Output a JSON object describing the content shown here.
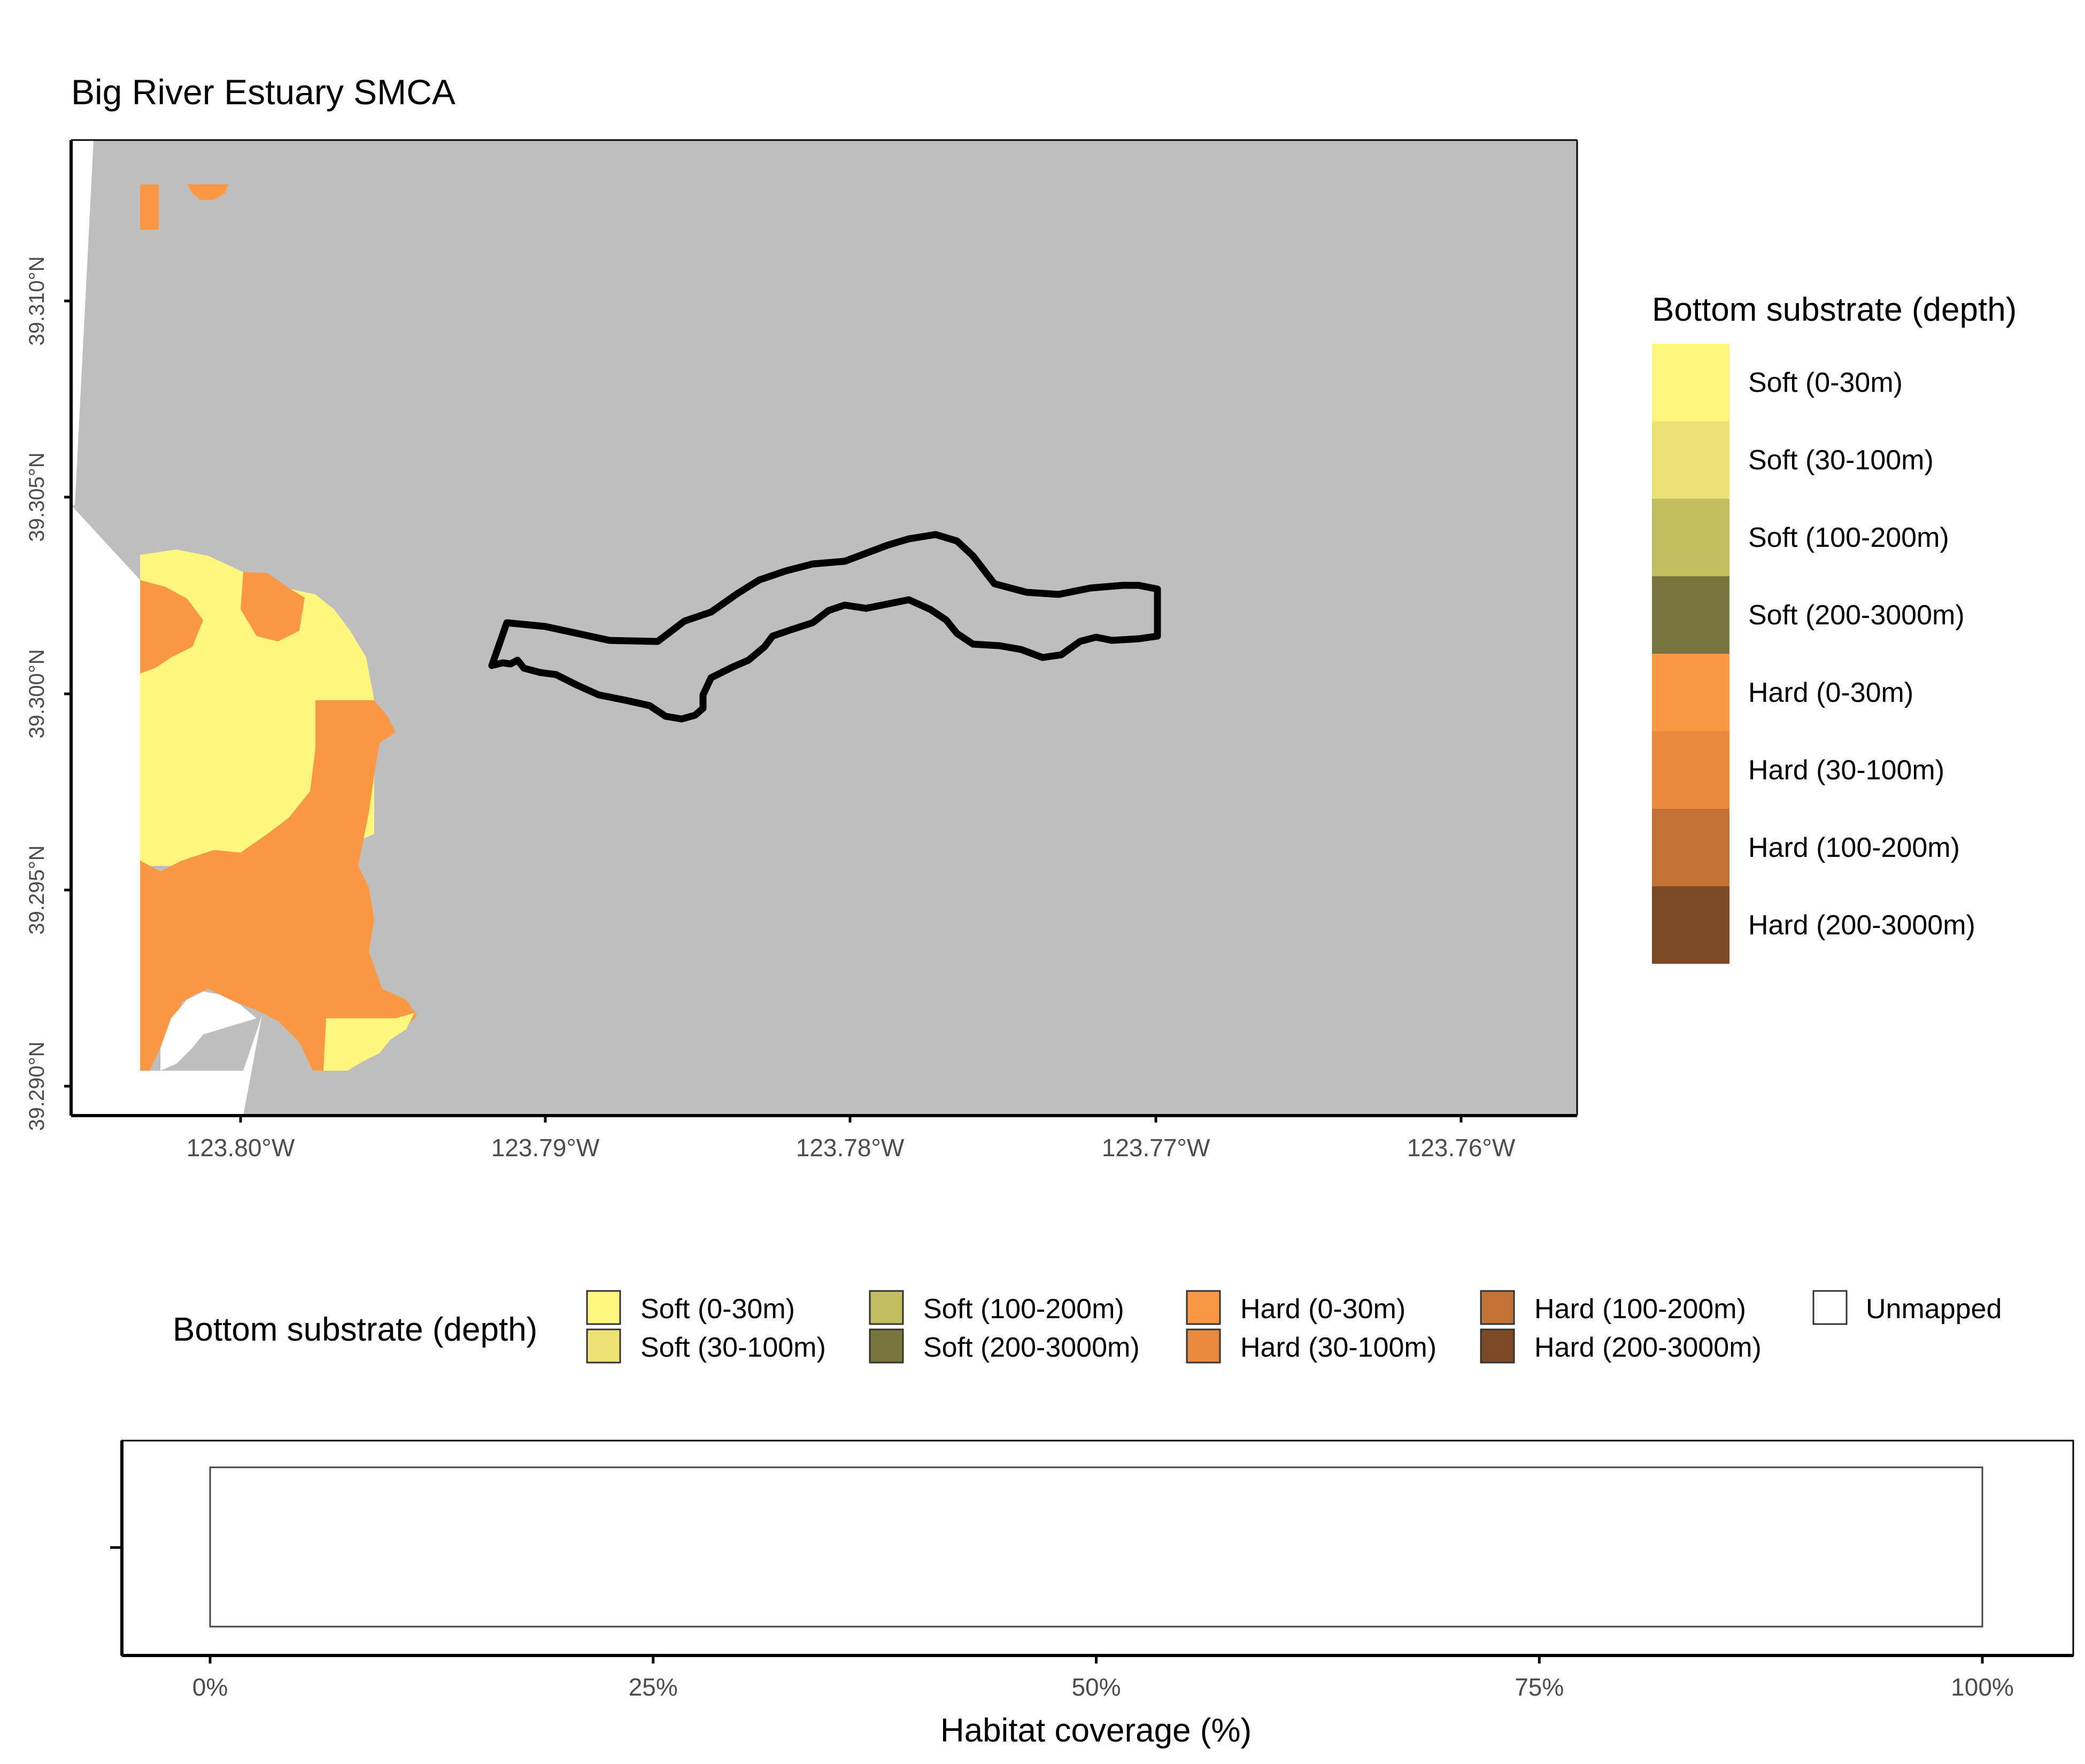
{
  "title": "Big River Estuary SMCA",
  "map": {
    "lat_ticks": [
      "39.290°N",
      "39.295°N",
      "39.300°N",
      "39.305°N",
      "39.310°N"
    ],
    "lon_ticks": [
      "123.80°W",
      "123.79°W",
      "123.78°W",
      "123.77°W",
      "123.76°W"
    ],
    "background_color": "#bebebe"
  },
  "legend_right": {
    "title": "Bottom substrate (depth)",
    "items": [
      {
        "label": "Soft (0-30m)",
        "color": "#fff67f"
      },
      {
        "label": "Soft (30-100m)",
        "color": "#ebe373"
      },
      {
        "label": "Soft (100-200m)",
        "color": "#c3bd62"
      },
      {
        "label": "Soft (200-3000m)",
        "color": "#78763e"
      },
      {
        "label": "Hard (0-30m)",
        "color": "#fc9844"
      },
      {
        "label": "Hard (30-100m)",
        "color": "#e8893c"
      },
      {
        "label": "Hard (100-200m)",
        "color": "#c27234"
      },
      {
        "label": "Hard (200-3000m)",
        "color": "#7b4924"
      }
    ]
  },
  "legend_bottom": {
    "title": "Bottom substrate (depth)",
    "items": [
      {
        "label": "Soft (0-30m)",
        "color": "#fff67f"
      },
      {
        "label": "Soft (30-100m)",
        "color": "#ebe373"
      },
      {
        "label": "Soft (100-200m)",
        "color": "#c3bd62"
      },
      {
        "label": "Soft (200-3000m)",
        "color": "#78763e"
      },
      {
        "label": "Hard (0-30m)",
        "color": "#fc9844"
      },
      {
        "label": "Hard (30-100m)",
        "color": "#e8893c"
      },
      {
        "label": "Hard (100-200m)",
        "color": "#c27234"
      },
      {
        "label": "Hard (200-3000m)",
        "color": "#7b4924"
      },
      {
        "label": "Unmapped",
        "color": "#ffffff"
      }
    ]
  },
  "chart_data": {
    "type": "bar",
    "orientation": "horizontal",
    "categories": [
      ""
    ],
    "series": [
      {
        "name": "Unmapped",
        "values": [
          100
        ]
      }
    ],
    "xlabel": "Habitat coverage (%)",
    "x_ticks": [
      "0%",
      "25%",
      "50%",
      "75%",
      "100%"
    ],
    "xlim": [
      0,
      100
    ]
  }
}
